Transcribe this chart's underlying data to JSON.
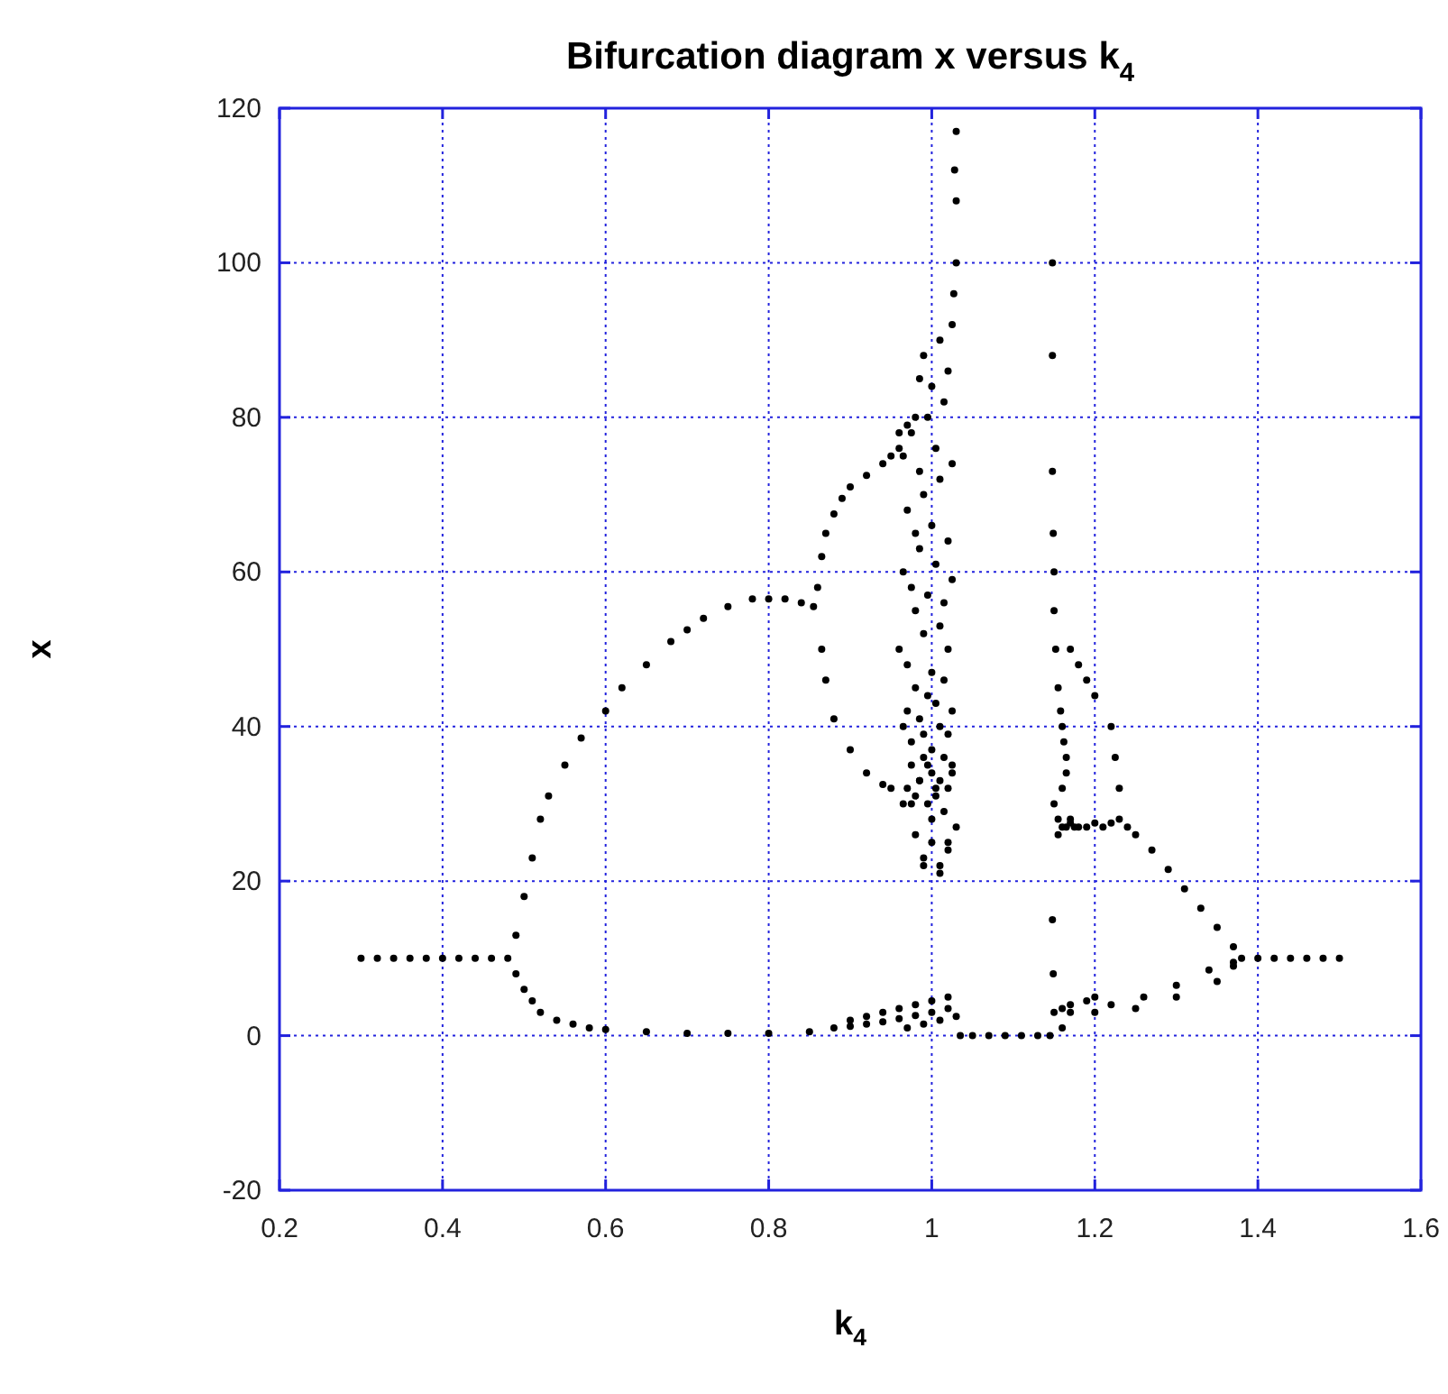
{
  "chart_data": {
    "type": "scatter",
    "title": "Bifurcation diagram x versus k$_{4}$",
    "xlabel": "k$_{4}$",
    "ylabel": "x",
    "xlim": [
      0.2,
      1.6
    ],
    "xticks": [
      0.2,
      0.4,
      0.6,
      0.8,
      1,
      1.2,
      1.4,
      1.6
    ],
    "ylim": [
      -20,
      120
    ],
    "yticks": [
      -20,
      0,
      20,
      40,
      60,
      80,
      100,
      120
    ],
    "grid": true,
    "marker": "circle",
    "series": [
      {
        "color": "#000000",
        "x": [
          0.3,
          0.32,
          0.34,
          0.36,
          0.38,
          0.4,
          0.42,
          0.44,
          0.46,
          0.48,
          1.38,
          1.4,
          1.42,
          1.44,
          1.46,
          1.48,
          1.5
        ],
        "values": [
          10,
          10,
          10,
          10,
          10,
          10,
          10,
          10,
          10,
          10,
          10,
          10,
          10,
          10,
          10,
          10,
          10
        ]
      },
      {
        "color": "#000000",
        "x": [
          0.49,
          0.5,
          0.51,
          0.52,
          0.53,
          0.55,
          0.57,
          0.6,
          0.62,
          0.65,
          0.68,
          0.7,
          0.72,
          0.75,
          0.78,
          0.8,
          0.82,
          0.84,
          0.855,
          0.86,
          0.865,
          0.87,
          0.88,
          0.9,
          0.92,
          0.94,
          0.95,
          0.865,
          0.87,
          0.88,
          0.89,
          0.9,
          0.92,
          0.94,
          0.95,
          0.96
        ],
        "values": [
          13,
          18,
          23,
          28,
          31,
          35,
          38.5,
          42,
          45,
          48,
          51,
          52.5,
          54,
          55.5,
          56.5,
          56.5,
          56.5,
          56,
          55.5,
          58,
          50,
          46,
          41,
          37,
          34,
          32.5,
          32,
          62,
          65,
          67.5,
          69.5,
          71,
          72.5,
          74,
          75,
          76
        ]
      },
      {
        "color": "#000000",
        "x": [
          0.49,
          0.5,
          0.51,
          0.52,
          0.54,
          0.56,
          0.58,
          0.6,
          0.65,
          0.7,
          0.75,
          0.8,
          0.85,
          0.88,
          0.9,
          0.92,
          0.94,
          0.96,
          0.98,
          1,
          1.02,
          0.9,
          0.92,
          0.94,
          0.96,
          0.98,
          1,
          1.02,
          0.97,
          0.99,
          1.01,
          1.03
        ],
        "values": [
          8,
          6,
          4.5,
          3,
          2,
          1.5,
          1,
          0.8,
          0.5,
          0.3,
          0.3,
          0.3,
          0.5,
          1,
          1.2,
          1.5,
          1.8,
          2.2,
          2.6,
          3,
          3.5,
          2,
          2.5,
          3,
          3.5,
          4,
          4.5,
          5,
          1,
          1.5,
          2,
          2.5
        ]
      },
      {
        "color": "#000000",
        "x": [
          1.035,
          1.05,
          1.07,
          1.09,
          1.11,
          1.13,
          1.145,
          1.16,
          1.17,
          1.2,
          1.25,
          1.3,
          1.35,
          1.37,
          1.15,
          1.16,
          1.17,
          1.19,
          1.2,
          1.22,
          1.26,
          1.3,
          1.34,
          1.37
        ],
        "values": [
          0,
          0,
          0,
          0,
          0,
          0,
          0,
          1,
          3,
          3,
          3.5,
          5,
          7,
          9,
          3,
          3.5,
          4,
          4.5,
          5,
          4,
          5,
          6.5,
          8.5,
          9.5
        ]
      },
      {
        "color": "#000000",
        "x": [
          0.965,
          0.97,
          0.975,
          0.98,
          0.985,
          0.99,
          0.995,
          1,
          1.005,
          1.01,
          1.015,
          1.02,
          1.025,
          0.965,
          0.97,
          0.975,
          0.98,
          0.985,
          0.99,
          0.995,
          1,
          1.005,
          1.01,
          1.015,
          1.02,
          1.025,
          0.96,
          0.97,
          0.98,
          0.99,
          1,
          1.01,
          1.02,
          0.965,
          0.975,
          0.985,
          0.995,
          1.005,
          1.015,
          1.025,
          0.97,
          0.98,
          0.99,
          1,
          1.01,
          1.02,
          0.965,
          0.975,
          0.985,
          0.995,
          1.005,
          1.015,
          1.025,
          0.985,
          0.99,
          1,
          1.01,
          1.02,
          1.025,
          0.99,
          1,
          1.01,
          1.02,
          1.03,
          1.03,
          1.03,
          1.028,
          1.03,
          1.027,
          0.98,
          0.99,
          1,
          1.01,
          1.02,
          0.975,
          0.985,
          0.995,
          1.005,
          1.015,
          1.025,
          0.96,
          0.97,
          0.98
        ],
        "values": [
          30,
          32,
          35,
          31,
          33,
          36,
          30,
          34,
          31,
          33,
          29,
          32,
          35,
          40,
          42,
          38,
          45,
          41,
          39,
          44,
          37,
          43,
          40,
          46,
          39,
          42,
          50,
          48,
          55,
          52,
          47,
          53,
          50,
          60,
          58,
          63,
          57,
          61,
          56,
          59,
          68,
          65,
          70,
          66,
          72,
          64,
          75,
          78,
          73,
          80,
          76,
          82,
          74,
          85,
          88,
          84,
          90,
          86,
          92,
          22,
          25,
          21,
          24,
          27,
          100,
          108,
          112,
          117,
          96,
          26,
          23,
          28,
          22,
          25,
          30,
          33,
          35,
          32,
          36,
          34,
          78,
          79,
          80
        ]
      },
      {
        "color": "#000000",
        "x": [
          1.148,
          1.148,
          1.148,
          1.148,
          1.149,
          1.149,
          1.15,
          1.15,
          1.152,
          1.155,
          1.158,
          1.16,
          1.162,
          1.165,
          1.15,
          1.155,
          1.16,
          1.165,
          1.17,
          1.155,
          1.16,
          1.165,
          1.17,
          1.175,
          1.18,
          1.19,
          1.2,
          1.21,
          1.22,
          1.23,
          1.24,
          1.23,
          1.225,
          1.22,
          1.2,
          1.19,
          1.18,
          1.17
        ],
        "values": [
          88,
          73,
          15,
          100,
          8,
          65,
          60,
          55,
          50,
          45,
          42,
          40,
          38,
          36,
          30,
          28,
          32,
          34,
          28,
          26,
          27,
          27,
          27.5,
          27,
          27,
          27,
          27.5,
          27,
          27.5,
          28,
          27,
          32,
          36,
          40,
          44,
          46,
          48,
          50
        ]
      },
      {
        "color": "#000000",
        "x": [
          1.25,
          1.27,
          1.29,
          1.31,
          1.33,
          1.35,
          1.37
        ],
        "values": [
          26,
          24,
          21.5,
          19,
          16.5,
          14,
          11.5
        ]
      }
    ]
  }
}
